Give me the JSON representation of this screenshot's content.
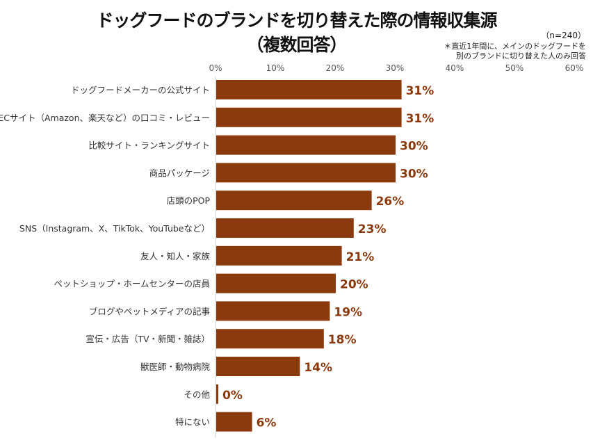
{
  "chart_data": {
    "type": "bar",
    "orientation": "horizontal",
    "title": "ドッグフードのブランドを切り替えた際の情報収集源",
    "subtitle": "（複数回答）",
    "sample_size": "（n=240）",
    "note_lines": [
      "＊直近1年間に、メインのドッグフードを",
      "別のブランドに切り替えた人のみ回答"
    ],
    "categories": [
      "ドッグフードメーカーの公式サイト",
      "ECサイト（Amazon、楽天など）の口コミ・レビュー",
      "比較サイト・ランキングサイト",
      "商品パッケージ",
      "店頭のPOP",
      "SNS（Instagram、X、TikTok、YouTubeなど）",
      "友人・知人・家族",
      "ペットショップ・ホームセンターの店員",
      "ブログやペットメディアの記事",
      "宣伝・広告（TV・新聞・雑誌）",
      "獣医師・動物病院",
      "その他",
      "特にない"
    ],
    "values": [
      31,
      31,
      30,
      30,
      26,
      23,
      21,
      20,
      19,
      18,
      14,
      0,
      6
    ],
    "data_labels": [
      "31%",
      "31%",
      "30%",
      "30%",
      "26%",
      "23%",
      "21%",
      "20%",
      "19%",
      "18%",
      "14%",
      "0%",
      "6%"
    ],
    "xlim": [
      0,
      60
    ],
    "x_ticks": [
      "0%",
      "10%",
      "20%",
      "30%",
      "40%",
      "50%",
      "60%"
    ],
    "x_axis_position": "top",
    "grid": false,
    "bar_color": "#8B3A0E",
    "label_color": "#8B3A0E"
  }
}
